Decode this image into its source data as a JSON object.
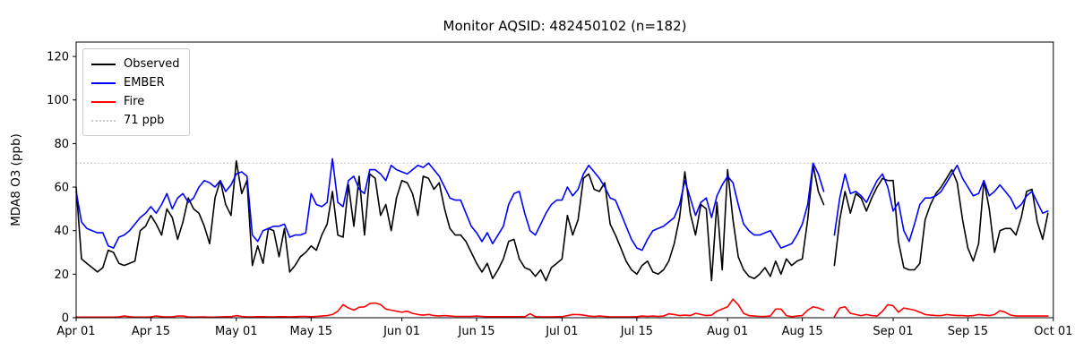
{
  "chart_data": {
    "type": "line",
    "title": "Monitor AQSID: 482450102 (n=182)",
    "ylabel": "MDA8 O3 (ppb)",
    "n_points": 182,
    "grid": false,
    "legend_position": "upper left",
    "x_range": [
      0,
      183
    ],
    "ylim": [
      0,
      126.6
    ],
    "y_ticks": [
      0,
      20,
      40,
      60,
      80,
      100,
      120
    ],
    "x_ticks": [
      {
        "day": 0,
        "label": "Apr 01"
      },
      {
        "day": 14,
        "label": "Apr 15"
      },
      {
        "day": 30,
        "label": "May 01"
      },
      {
        "day": 44,
        "label": "May 15"
      },
      {
        "day": 61,
        "label": "Jun 01"
      },
      {
        "day": 75,
        "label": "Jun 15"
      },
      {
        "day": 91,
        "label": "Jul 01"
      },
      {
        "day": 105,
        "label": "Jul 15"
      },
      {
        "day": 122,
        "label": "Aug 01"
      },
      {
        "day": 136,
        "label": "Aug 15"
      },
      {
        "day": 153,
        "label": "Sep 01"
      },
      {
        "day": 167,
        "label": "Sep 15"
      },
      {
        "day": 183,
        "label": "Oct 01"
      }
    ],
    "threshold": {
      "label": "71 ppb",
      "value": 71,
      "color": "#c9c9c9"
    },
    "series": [
      {
        "name": "Observed",
        "color": "#000000",
        "values": [
          60,
          27,
          25,
          23,
          21,
          23,
          31,
          30,
          25,
          24,
          25,
          26,
          40,
          42,
          47,
          43,
          38,
          50,
          46,
          36,
          44,
          55,
          50,
          48,
          42,
          34,
          55,
          63,
          52,
          47,
          72,
          57,
          63,
          24,
          33,
          25,
          41,
          40,
          28,
          41,
          21,
          24,
          28,
          30,
          33,
          31,
          38,
          43,
          58,
          38,
          37,
          61,
          42,
          65,
          38,
          66,
          64,
          47,
          52,
          40,
          55,
          63,
          62,
          57,
          47,
          65,
          64,
          59,
          62,
          50,
          41,
          38,
          38,
          35,
          30,
          25,
          21,
          25,
          18,
          22,
          27,
          35,
          36,
          27,
          23,
          22,
          19,
          22,
          17,
          23,
          25,
          27,
          47,
          38,
          45,
          64,
          66,
          59,
          58,
          62,
          43,
          38,
          32,
          26,
          22,
          20,
          24,
          26,
          21,
          20,
          22,
          26,
          34,
          46,
          67,
          48,
          38,
          52,
          50,
          17,
          53,
          22,
          68,
          45,
          28,
          22,
          19,
          18,
          20,
          23,
          19,
          26,
          20,
          27,
          24,
          26,
          27,
          45,
          70,
          58,
          52,
          null,
          24,
          45,
          58,
          48,
          57,
          55,
          49,
          55,
          60,
          64,
          63,
          63,
          35,
          23,
          22,
          22,
          25,
          45,
          52,
          57,
          60,
          64,
          68,
          62,
          45,
          32,
          26,
          34,
          63,
          50,
          30,
          40,
          41,
          41,
          38,
          46,
          58,
          59,
          44,
          36,
          48
        ]
      },
      {
        "name": "EMBER",
        "color": "#0000ff",
        "values": [
          58,
          44,
          41,
          40,
          39,
          39,
          33,
          32,
          37,
          38,
          40,
          43,
          46,
          48,
          51,
          48,
          52,
          57,
          50,
          55,
          57,
          53,
          55,
          60,
          63,
          62,
          60,
          63,
          58,
          61,
          66,
          67,
          65,
          38,
          35,
          40,
          41,
          42,
          42,
          43,
          37,
          38,
          38,
          39,
          57,
          52,
          51,
          53,
          73,
          53,
          51,
          63,
          65,
          59,
          57,
          68,
          68,
          66,
          63,
          70,
          68,
          67,
          66,
          68,
          70,
          69,
          71,
          68,
          65,
          60,
          55,
          54,
          54,
          48,
          42,
          39,
          35,
          39,
          34,
          38,
          42,
          52,
          57,
          58,
          48,
          40,
          38,
          43,
          48,
          52,
          54,
          54,
          60,
          56,
          59,
          66,
          70,
          67,
          64,
          60,
          55,
          54,
          48,
          42,
          36,
          32,
          31,
          36,
          40,
          41,
          42,
          44,
          46,
          52,
          63,
          55,
          47,
          53,
          55,
          46,
          56,
          61,
          65,
          62,
          52,
          43,
          40,
          38,
          38,
          39,
          40,
          36,
          32,
          33,
          34,
          38,
          43,
          52,
          71,
          66,
          58,
          null,
          38,
          55,
          66,
          57,
          58,
          56,
          53,
          58,
          63,
          66,
          60,
          49,
          53,
          40,
          35,
          43,
          52,
          55,
          55,
          56,
          58,
          62,
          66,
          70,
          64,
          60,
          56,
          57,
          63,
          56,
          58,
          61,
          58,
          55,
          50,
          52,
          56,
          58,
          53,
          48,
          49
        ]
      },
      {
        "name": "Fire",
        "color": "#ff0000",
        "values": [
          0.3,
          0.3,
          0.3,
          0.3,
          0.3,
          0.3,
          0.3,
          0.3,
          0.4,
          0.8,
          0.5,
          0.3,
          0.3,
          0.3,
          0.4,
          0.8,
          0.5,
          0.4,
          0.4,
          0.8,
          0.8,
          0.4,
          0.3,
          0.4,
          0.4,
          0.3,
          0.3,
          0.4,
          0.5,
          0.5,
          1.0,
          0.6,
          0.4,
          0.4,
          0.5,
          0.5,
          0.4,
          0.4,
          0.5,
          0.5,
          0.4,
          0.5,
          0.6,
          0.6,
          0.5,
          0.6,
          0.8,
          1.0,
          1.5,
          3.0,
          6.0,
          4.5,
          3.5,
          4.8,
          5.0,
          6.5,
          6.8,
          6.0,
          4.0,
          3.5,
          3.0,
          2.5,
          3.0,
          2.0,
          1.5,
          1.2,
          1.5,
          1.0,
          0.8,
          1.0,
          0.8,
          0.6,
          0.6,
          0.6,
          0.6,
          0.8,
          0.6,
          0.5,
          0.5,
          0.5,
          0.5,
          0.5,
          0.5,
          0.5,
          0.5,
          1.8,
          0.5,
          0.4,
          0.4,
          0.4,
          0.5,
          0.5,
          1.0,
          1.5,
          1.5,
          1.2,
          0.8,
          0.6,
          0.8,
          0.6,
          0.4,
          0.4,
          0.4,
          0.4,
          0.4,
          0.5,
          0.8,
          0.6,
          0.8,
          0.6,
          0.8,
          1.8,
          1.5,
          1.0,
          1.2,
          1.0,
          2.0,
          1.5,
          1.0,
          1.2,
          3.0,
          4.0,
          5.0,
          8.5,
          6.0,
          2.0,
          1.0,
          0.8,
          0.6,
          0.6,
          0.8,
          4.0,
          4.0,
          1.0,
          0.5,
          0.8,
          1.0,
          3.5,
          5.0,
          4.5,
          3.5,
          null,
          0.5,
          4.5,
          5.0,
          2.0,
          1.5,
          1.0,
          1.5,
          1.0,
          0.8,
          3.0,
          6.0,
          5.5,
          2.5,
          4.5,
          4.0,
          3.5,
          2.5,
          1.5,
          1.2,
          1.0,
          1.0,
          1.5,
          1.2,
          1.0,
          1.0,
          0.8,
          1.0,
          1.5,
          1.2,
          1.0,
          1.5,
          3.2,
          2.5,
          1.2,
          0.8,
          0.8,
          0.8,
          0.8,
          0.8,
          0.8,
          0.8
        ]
      }
    ],
    "legend": [
      {
        "label": "Observed",
        "color": "#000000",
        "style": "solid"
      },
      {
        "label": "EMBER",
        "color": "#0000ff",
        "style": "solid"
      },
      {
        "label": "Fire",
        "color": "#ff0000",
        "style": "solid"
      },
      {
        "label": "71 ppb",
        "color": "#c9c9c9",
        "style": "dotted"
      }
    ]
  }
}
